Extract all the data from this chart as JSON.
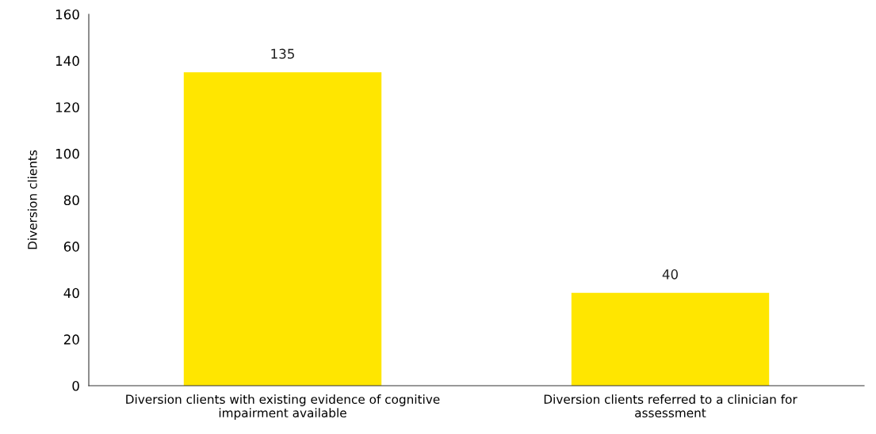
{
  "chart_data": {
    "type": "bar",
    "categories": [
      "Diversion clients with existing evidence of cognitive\nimpairment available",
      "Diversion clients referred to a clinician for\nassessment"
    ],
    "values": [
      135,
      40
    ],
    "color": "#ffe600",
    "ylabel": "Diversion clients",
    "ylim": [
      0,
      160
    ],
    "yticks": [
      0,
      20,
      40,
      60,
      80,
      100,
      120,
      140,
      160
    ],
    "data_labels": true,
    "grid": false,
    "legend": false
  }
}
